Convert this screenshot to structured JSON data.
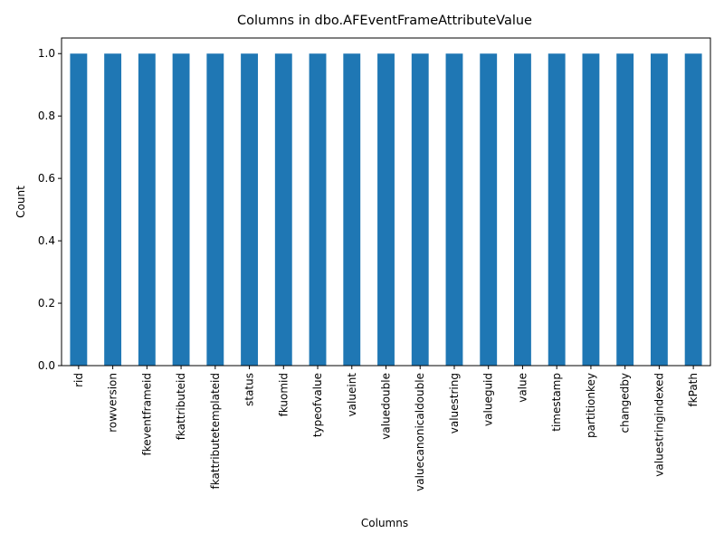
{
  "chart_data": {
    "type": "bar",
    "title": "Columns in dbo.AFEventFrameAttributeValue",
    "xlabel": "Columns",
    "ylabel": "Count",
    "categories": [
      "rid",
      "rowversion",
      "fkeventframeid",
      "fkattributeid",
      "fkattributetemplateid",
      "status",
      "fkuomid",
      "typeofvalue",
      "valueint",
      "valuedouble",
      "valuecanonicaldouble",
      "valuestring",
      "valueguid",
      "value",
      "timestamp",
      "partitionkey",
      "changedby",
      "valuestringindexed",
      "fkPath"
    ],
    "values": [
      1,
      1,
      1,
      1,
      1,
      1,
      1,
      1,
      1,
      1,
      1,
      1,
      1,
      1,
      1,
      1,
      1,
      1,
      1
    ],
    "ylim": [
      0,
      1.05
    ],
    "yticks": [
      "0.0",
      "0.2",
      "0.4",
      "0.6",
      "0.8",
      "1.0"
    ],
    "bar_color": "#1f77b4",
    "grid": false,
    "legend": "none"
  }
}
